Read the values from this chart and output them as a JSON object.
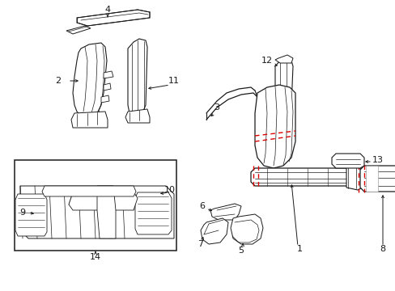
{
  "bg_color": "#ffffff",
  "line_color": "#1a1a1a",
  "red_color": "#dd0000",
  "figsize": [
    4.89,
    3.6
  ],
  "dpi": 100
}
